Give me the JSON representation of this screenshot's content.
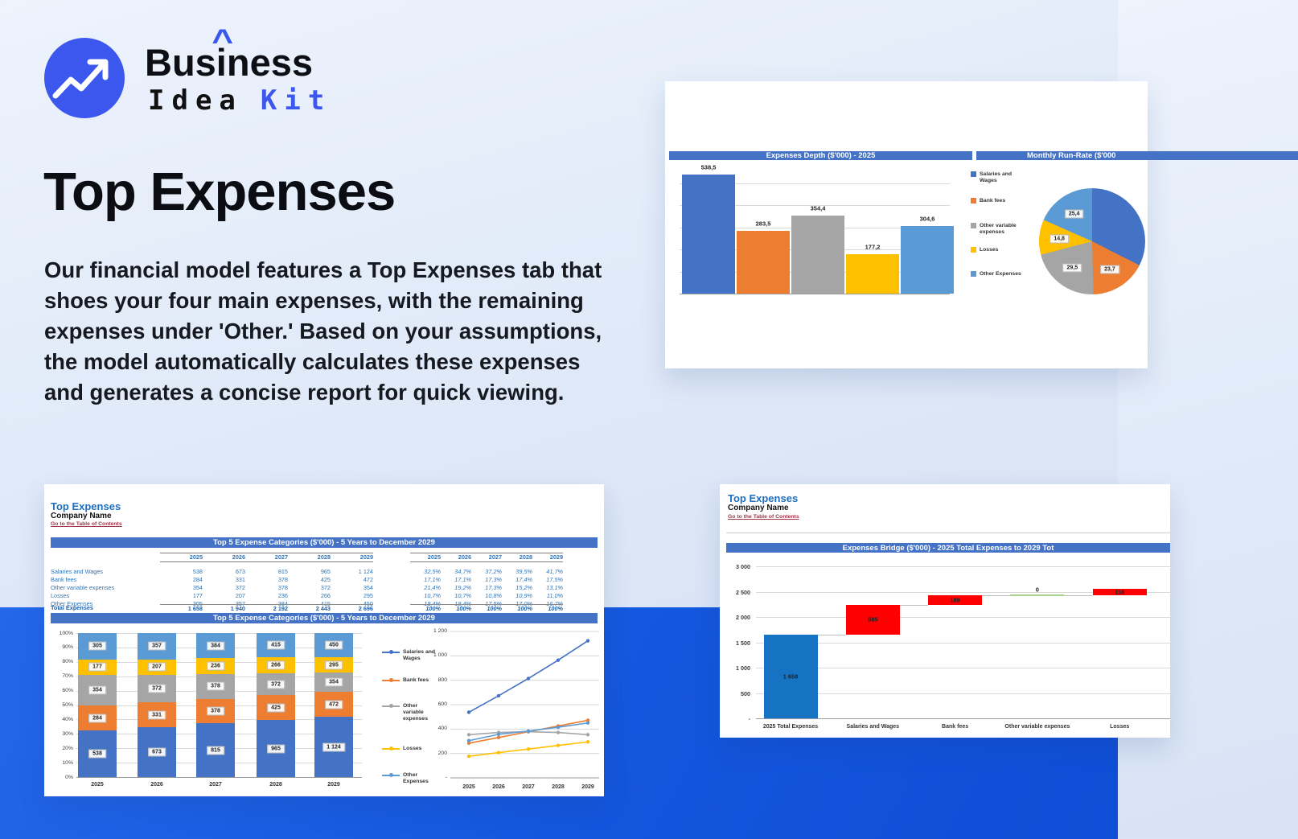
{
  "logo": {
    "pre": "Bus",
    "i_letter": "i",
    "hat": "^",
    "post": "ness",
    "line2_black": "Idea",
    "line2_blue": "Kit",
    "accent": "#3b57ee"
  },
  "hero": {
    "title": "Top Expenses",
    "body": "Our financial model features a Top Expenses tab that shoes your four main expenses, with the remaining expenses under 'Other.' Based on your assumptions, the model automatically calculates these expenses and generates a concise report for quick viewing."
  },
  "colors": {
    "blue": "#4472C4",
    "orange": "#ED7D31",
    "gray": "#A5A5A5",
    "yellow": "#FFC000",
    "light_blue": "#5B9BD5",
    "red": "#FF0000",
    "green": "#a9d08e",
    "header": "#4472C4"
  },
  "series_names": [
    "Salaries and Wages",
    "Bank fees",
    "Other variable expenses",
    "Losses",
    "Other Expenses"
  ],
  "years": [
    "2025",
    "2026",
    "2027",
    "2028",
    "2029"
  ],
  "depth_panel": {
    "bar_title": "Expenses Depth ($'000) - 2025",
    "pie_title": "Monthly Run-Rate ($'000",
    "chart_data": {
      "type": "bar",
      "categories": [
        "Salaries and Wages",
        "Bank fees",
        "Other variable expenses",
        "Losses",
        "Other Expenses"
      ],
      "values": [
        538.5,
        283.5,
        354.4,
        177.2,
        304.6
      ],
      "labels": [
        "538,5",
        "283,5",
        "354,4",
        "177,2",
        "304,6"
      ],
      "colors": [
        "blue",
        "orange",
        "gray",
        "yellow",
        "light_blue"
      ],
      "ylim": [
        0,
        600
      ],
      "grid_step": 100,
      "legend_position": "right"
    },
    "pie_chart_data": {
      "type": "pie",
      "categories": [
        "Salaries and Wages",
        "Bank fees",
        "Other variable expenses",
        "Losses",
        "Other Expenses"
      ],
      "values": [
        44.9,
        23.7,
        29.5,
        14.8,
        25.4
      ],
      "labels": [
        "",
        "23,7",
        "29,5",
        "14,8",
        "25,4"
      ],
      "colors": [
        "blue",
        "orange",
        "gray",
        "yellow",
        "light_blue"
      ]
    }
  },
  "sheet1": {
    "title": "Top Expenses",
    "company": "Company Name",
    "link": "Go to the Table of Contents",
    "table_header": "Top 5 Expense Categories ($'000) - 5 Years to December 2029",
    "chart_header": "Top 5 Expense Categories ($'000) - 5 Years to December 2029",
    "table": {
      "rows": [
        {
          "label": "Salaries and Wages",
          "values": [
            "538",
            "673",
            "815",
            "965",
            "1 124"
          ],
          "pct": [
            "32,5%",
            "34,7%",
            "37,2%",
            "39,5%",
            "41,7%"
          ]
        },
        {
          "label": "Bank fees",
          "values": [
            "284",
            "331",
            "378",
            "425",
            "472"
          ],
          "pct": [
            "17,1%",
            "17,1%",
            "17,3%",
            "17,4%",
            "17,5%"
          ]
        },
        {
          "label": "Other variable expenses",
          "values": [
            "354",
            "372",
            "378",
            "372",
            "354"
          ],
          "pct": [
            "21,4%",
            "19,2%",
            "17,3%",
            "15,2%",
            "13,1%"
          ]
        },
        {
          "label": "Losses",
          "values": [
            "177",
            "207",
            "236",
            "266",
            "295"
          ],
          "pct": [
            "10,7%",
            "10,7%",
            "10,8%",
            "10,9%",
            "11,0%"
          ]
        },
        {
          "label": "Other Expenses",
          "values": [
            "305",
            "357",
            "384",
            "415",
            "450"
          ],
          "pct": [
            "18,4%",
            "18,4%",
            "17,5%",
            "17,0%",
            "16,7%"
          ]
        }
      ],
      "total": {
        "label": "Total Expenses",
        "values": [
          "1 658",
          "1 940",
          "2 192",
          "2 443",
          "2 696"
        ],
        "pct": [
          "100%",
          "100%",
          "100%",
          "100%",
          "100%"
        ]
      }
    },
    "stacked_chart_data": {
      "type": "bar",
      "stacked_pct": true,
      "categories": [
        "2025",
        "2026",
        "2027",
        "2028",
        "2029"
      ],
      "series": [
        {
          "name": "Salaries and Wages",
          "color": "blue",
          "values": [
            538,
            673,
            815,
            965,
            1124
          ]
        },
        {
          "name": "Bank fees",
          "color": "orange",
          "values": [
            284,
            331,
            378,
            425,
            472
          ]
        },
        {
          "name": "Other variable expenses",
          "color": "gray",
          "values": [
            354,
            372,
            378,
            372,
            354
          ]
        },
        {
          "name": "Losses",
          "color": "yellow",
          "values": [
            177,
            207,
            236,
            266,
            295
          ]
        },
        {
          "name": "Other Expenses",
          "color": "light_blue",
          "values": [
            305,
            357,
            384,
            415,
            450
          ]
        }
      ],
      "yticks": [
        "100%",
        "90%",
        "80%",
        "70%",
        "60%",
        "50%",
        "40%",
        "30%",
        "20%",
        "10%",
        "0%"
      ]
    },
    "line_chart_data": {
      "type": "line",
      "x": [
        "2025",
        "2026",
        "2027",
        "2028",
        "2029"
      ],
      "series": [
        {
          "name": "Salaries and Wages",
          "color": "blue",
          "values": [
            538,
            673,
            815,
            965,
            1124
          ]
        },
        {
          "name": "Bank fees",
          "color": "orange",
          "values": [
            284,
            331,
            378,
            425,
            472
          ]
        },
        {
          "name": "Other variable expenses",
          "color": "gray",
          "values": [
            354,
            372,
            378,
            372,
            354
          ]
        },
        {
          "name": "Losses",
          "color": "yellow",
          "values": [
            177,
            207,
            236,
            266,
            295
          ]
        },
        {
          "name": "Other Expenses",
          "color": "light_blue",
          "values": [
            305,
            357,
            384,
            415,
            450
          ]
        }
      ],
      "yticks": [
        "1 200",
        "1 000",
        "800",
        "600",
        "400",
        "200",
        "-"
      ],
      "ylim": [
        0,
        1200
      ],
      "legend_position": "left"
    }
  },
  "sheet2": {
    "title": "Top Expenses",
    "company": "Company Name",
    "link": "Go to the Table of Contents",
    "chart_header": "Expenses Bridge ($'000) - 2025 Total Expenses to 2029 Tot",
    "waterfall_chart_data": {
      "type": "bar",
      "subtype": "waterfall",
      "categories": [
        "2025 Total Expenses",
        "Salaries and Wages",
        "Bank fees",
        "Other variable expenses",
        "Losses"
      ],
      "bars": [
        {
          "label": "1 658",
          "start": 0,
          "end": 1658,
          "color": "#1673c4"
        },
        {
          "label": "585",
          "start": 1658,
          "end": 2243,
          "color": "#FF0000"
        },
        {
          "label": "189",
          "start": 2243,
          "end": 2432,
          "color": "#FF0000"
        },
        {
          "label": "0",
          "start": 2432,
          "end": 2432,
          "color": "#a9d08e"
        },
        {
          "label": "118",
          "start": 2432,
          "end": 2550,
          "color": "#FF0000"
        }
      ],
      "yticks": [
        "3 000",
        "2 500",
        "2 000",
        "1 500",
        "1 000",
        "500",
        "-"
      ],
      "ylim": [
        0,
        3000
      ]
    }
  }
}
